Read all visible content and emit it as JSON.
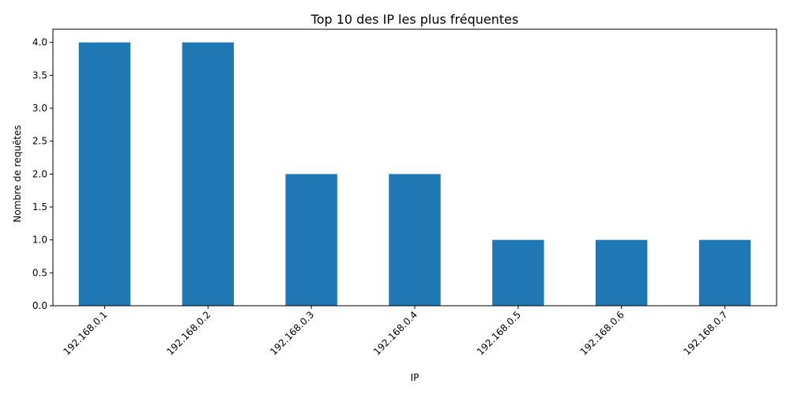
{
  "chart_data": {
    "type": "bar",
    "title": "Top 10 des IP les plus fréquentes",
    "xlabel": "IP",
    "ylabel": "Nombre de requêtes",
    "categories": [
      "192.168.0.1",
      "192.168.0.2",
      "192.168.0.3",
      "192.168.0.4",
      "192.168.0.5",
      "192.168.0.6",
      "192.168.0.7"
    ],
    "values": [
      4,
      4,
      2,
      2,
      1,
      1,
      1
    ],
    "ylim": [
      0,
      4.2
    ],
    "yticks": [
      "0.0",
      "0.5",
      "1.0",
      "1.5",
      "2.0",
      "2.5",
      "3.0",
      "3.5",
      "4.0"
    ],
    "bar_color": "#1f77b4",
    "grid": false,
    "legend": "none"
  }
}
